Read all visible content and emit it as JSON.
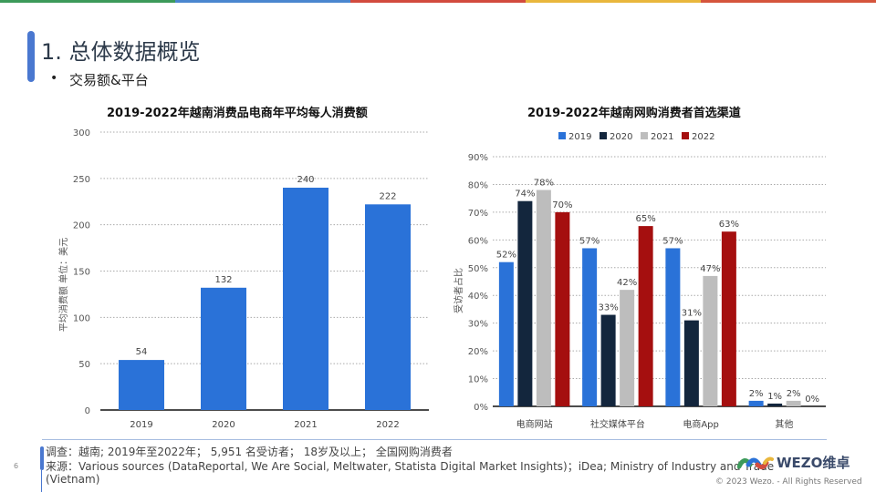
{
  "brand": {
    "topbar_colors": [
      "#3c9a5a",
      "#4a86cf",
      "#d24b3e",
      "#e9b73c",
      "#d5553c"
    ],
    "accent": "#4a78d0"
  },
  "header": {
    "title": "1. 总体数据概览",
    "bullet": "•",
    "subtitle": "交易额&平台"
  },
  "chart_data": [
    {
      "type": "bar",
      "title": "2019-2022年越南消费品电商年平均每人消费额",
      "xlabel": "",
      "ylabel": "平均消费额 单位：美元",
      "categories": [
        "2019",
        "2020",
        "2021",
        "2022"
      ],
      "values": [
        54,
        132,
        240,
        222
      ],
      "data_labels": [
        "54",
        "132",
        "240",
        "222"
      ],
      "ylim": [
        0,
        300
      ],
      "yticks": [
        0,
        50,
        100,
        150,
        200,
        250,
        300
      ],
      "ytick_labels": [
        "0",
        "50",
        "100",
        "150",
        "200",
        "250",
        "300"
      ],
      "grid": true,
      "color": "#2a72d8"
    },
    {
      "type": "bar",
      "title": "2019-2022年越南网购消费者首选渠道",
      "xlabel": "",
      "ylabel": "受访者占比",
      "categories": [
        "电商网站",
        "社交媒体平台",
        "电商App",
        "其他"
      ],
      "series": [
        {
          "name": "2019",
          "color": "#2a72d8",
          "values": [
            52,
            57,
            57,
            2
          ]
        },
        {
          "name": "2020",
          "color": "#13263d",
          "values": [
            74,
            33,
            31,
            1
          ]
        },
        {
          "name": "2021",
          "color": "#bdbdbd",
          "values": [
            78,
            42,
            47,
            2
          ]
        },
        {
          "name": "2022",
          "color": "#a50f0f",
          "values": [
            70,
            65,
            63,
            0
          ]
        }
      ],
      "unit": "%",
      "ylim": [
        0,
        90
      ],
      "yticks": [
        0,
        10,
        20,
        30,
        40,
        50,
        60,
        70,
        80,
        90
      ],
      "ytick_labels": [
        "0%",
        "10%",
        "20%",
        "30%",
        "40%",
        "50%",
        "60%",
        "70%",
        "80%",
        "90%"
      ],
      "legend": "top",
      "grid": true
    }
  ],
  "footer": {
    "page_number": "6",
    "survey": "调查：越南; 2019年至2022年； 5,951 名受访者； 18岁及以上； 全国网购消费者",
    "source_line1": "来源：Various sources (DataReportal, We Are Social, Meltwater, Statista Digital Market Insights)；iDea; Ministry of Industry and Trade",
    "source_line2": "(Vietnam)",
    "logo_text": "WEZO维卓",
    "copyright": "© 2023 Wezo. - All Rights Reserved"
  }
}
